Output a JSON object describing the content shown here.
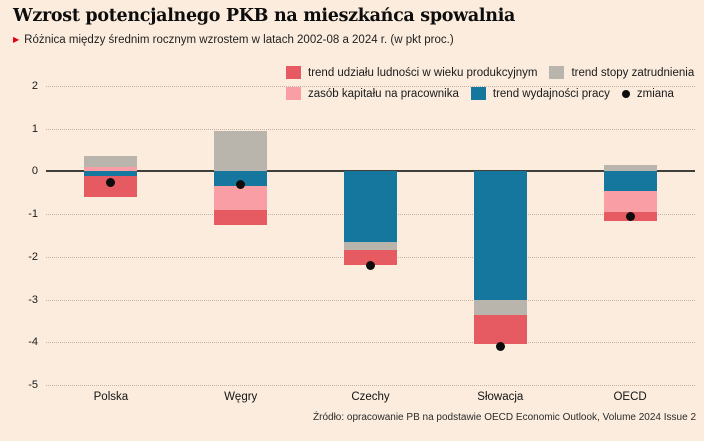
{
  "header": {
    "title": "Wzrost potencjalnego PKB na mieszkańca spowalnia",
    "subtitle": "Różnica między średnim rocznym wzrostem w latach 2002-08 a 2024 r. (w pkt proc.)"
  },
  "footer": {
    "source": "Źródło: opracowanie PB na podstawie OECD Economic Outlook, Volume 2024 Issue 2"
  },
  "legend": {
    "items": [
      {
        "label": "trend udziału ludności w wieku produkcyjnym",
        "color": "#e65a62"
      },
      {
        "label": "trend stopy zatrudnienia",
        "color": "#b9b5ac"
      },
      {
        "label": "zasób kapitału na pracownika",
        "color": "#f99ea4"
      },
      {
        "label": "trend wydajności pracy",
        "color": "#15779e"
      },
      {
        "label": "zmiana",
        "color": "#0d0d0d"
      }
    ]
  },
  "colors": {
    "background": "#fbecdd",
    "grid": "#c4b1a0",
    "zero_line": "#403e39",
    "accent_red": "#e3000f"
  },
  "chart_data": {
    "type": "bar",
    "stacked": true,
    "title": "Wzrost potencjalnego PKB na mieszkańca spowalnia",
    "subtitle": "Różnica między średnim rocznym wzrostem w latach 2002-08 a 2024 r. (w pkt proc.)",
    "categories": [
      "Polska",
      "Węgry",
      "Czechy",
      "Słowacja",
      "OECD"
    ],
    "series": [
      {
        "name": "trend wydajności pracy",
        "color": "#15779e",
        "values": [
          -0.1,
          -0.35,
          -1.65,
          -3.0,
          -0.45
        ]
      },
      {
        "name": "zasób kapitału na pracownika",
        "color": "#f99ea4",
        "values": [
          0.1,
          -0.55,
          0,
          0,
          -0.5
        ]
      },
      {
        "name": "trend stopy zatrudnienia",
        "color": "#b9b5ac",
        "values": [
          0.25,
          0.95,
          -0.2,
          -0.35,
          0.15
        ]
      },
      {
        "name": "trend udziału ludności w wieku produkcyjnym",
        "color": "#e65a62",
        "values": [
          -0.5,
          -0.35,
          -0.35,
          -0.7,
          -0.2
        ]
      }
    ],
    "dots": {
      "name": "zmiana",
      "color": "#0d0d0d",
      "values": [
        -0.25,
        -0.3,
        -2.2,
        -4.1,
        -1.05
      ]
    },
    "ylim": [
      -5,
      2
    ],
    "yticks": [
      2,
      1,
      0,
      -1,
      -2,
      -3,
      -4,
      -5
    ],
    "grid": "horizontal-dotted",
    "legend_position": "top",
    "source": "Źródło: opracowanie PB na podstawie OECD Economic Outlook, Volume 2024 Issue 2"
  }
}
